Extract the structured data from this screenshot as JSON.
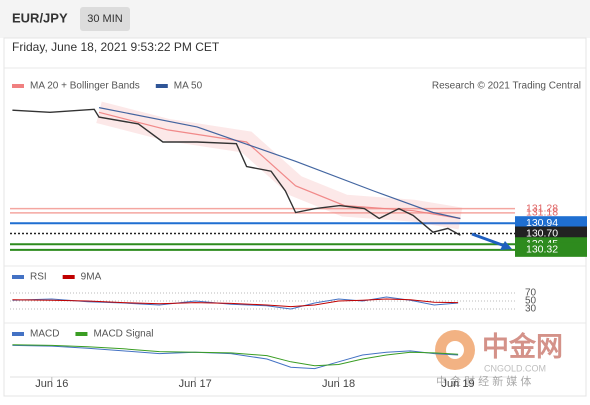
{
  "header": {
    "symbol": "EUR/JPY",
    "interval": "30 MIN",
    "timestamp": "Friday, June 18, 2021 9:53:22 PM CET"
  },
  "chart_data": [
    {
      "type": "price",
      "source": "Research © 2021 Trading Central",
      "x": [
        -6.6,
        -0.3,
        7.1,
        7.9,
        14.5,
        18.6,
        24.3,
        30.9,
        32.6,
        36.7,
        39.1,
        40.8,
        44.1,
        48.2,
        52.3,
        54.8,
        58.1,
        60.5,
        63.8,
        66.3,
        68.4
      ],
      "values": [
        133.57,
        133.52,
        133.59,
        133.41,
        133.25,
        132.83,
        132.83,
        132.79,
        132.26,
        132.15,
        131.69,
        131.19,
        131.28,
        131.35,
        131.28,
        131.05,
        131.28,
        131.12,
        130.73,
        130.82,
        130.66
      ],
      "color": "#333333",
      "series": [
        {
          "name": "MA 20 + Bollinger Bands",
          "color": "#f08080",
          "x": [
            7.9,
            19.4,
            32.6,
            40.8,
            49.0,
            60.5,
            68.4
          ],
          "values": [
            133.52,
            133.11,
            132.83,
            131.81,
            131.35,
            131.23,
            131.05
          ]
        },
        {
          "name": "MA 50",
          "color": "#2f5597",
          "x": [
            7.9,
            24.3,
            40.8,
            53.9,
            63.8,
            68.4
          ],
          "values": [
            133.63,
            133.18,
            132.38,
            131.69,
            131.19,
            131.05
          ]
        }
      ],
      "xlim": [
        -7,
        70
      ],
      "ylim": [
        130.2,
        133.9
      ],
      "yticks": [
        131.28,
        131.18,
        130.94,
        {
          "value": 130.7,
          "label": "130.70"
        },
        130.45,
        130.32
      ],
      "ytick_colors": [
        "#e06666",
        "#e06666",
        "#1f6fd1",
        "#222222",
        "#2e8b1e",
        "#2e8b1e"
      ],
      "ytick_boxed": [
        false,
        false,
        true,
        true,
        true,
        true
      ]
    },
    {
      "type": "oscillator",
      "title": "RSI",
      "series": [
        {
          "name": "RSI",
          "color": "#4472c4",
          "x": [
            -6.6,
            0,
            6,
            12,
            18,
            24,
            30,
            36,
            40,
            44,
            48,
            52,
            56,
            60,
            64,
            68
          ],
          "values": [
            52,
            55,
            48,
            45,
            40,
            50,
            42,
            38,
            30,
            45,
            55,
            50,
            60,
            52,
            40,
            45
          ]
        },
        {
          "name": "9MA",
          "color": "#c00000",
          "x": [
            -6.6,
            0,
            6,
            12,
            18,
            24,
            30,
            36,
            40,
            44,
            48,
            52,
            56,
            60,
            64,
            68
          ],
          "values": [
            53,
            52,
            50,
            46,
            43,
            46,
            44,
            40,
            36,
            40,
            50,
            52,
            55,
            53,
            47,
            46
          ]
        }
      ],
      "xlim": [
        -7,
        70
      ],
      "ylim": [
        15,
        85
      ],
      "yticks": [
        70,
        50,
        30
      ],
      "grid": true
    },
    {
      "type": "oscillator",
      "title": "MACD",
      "series": [
        {
          "name": "MACD",
          "color": "#4472c4",
          "x": [
            -6.6,
            0,
            6,
            12,
            18,
            24,
            30,
            36,
            40,
            44,
            48,
            52,
            56,
            60,
            64,
            68
          ],
          "values": [
            0.02,
            0.01,
            -0.02,
            -0.06,
            -0.1,
            -0.08,
            -0.1,
            -0.18,
            -0.3,
            -0.32,
            -0.22,
            -0.12,
            -0.08,
            -0.06,
            -0.1,
            -0.12
          ]
        },
        {
          "name": "MACD Signal",
          "color": "#3a9d23",
          "x": [
            -6.6,
            0,
            6,
            12,
            18,
            24,
            30,
            36,
            40,
            44,
            48,
            52,
            56,
            60,
            64,
            68
          ],
          "values": [
            0.03,
            0.02,
            0,
            -0.03,
            -0.07,
            -0.08,
            -0.09,
            -0.13,
            -0.22,
            -0.28,
            -0.26,
            -0.18,
            -0.12,
            -0.08,
            -0.09,
            -0.11
          ]
        }
      ],
      "xlim": [
        -7,
        70
      ],
      "ylim": [
        -0.4,
        0.1
      ],
      "xticks": [
        {
          "value": 0,
          "label": "Jun 16"
        },
        {
          "value": 24,
          "label": "Jun 17"
        },
        {
          "value": 48,
          "label": "Jun 18"
        },
        {
          "value": 68,
          "label": "Jun 19"
        }
      ]
    }
  ],
  "watermark": {
    "name": "中金网",
    "site": "CNGOLD.COM",
    "tagline": "中 金 财 经 新 媒 体"
  }
}
